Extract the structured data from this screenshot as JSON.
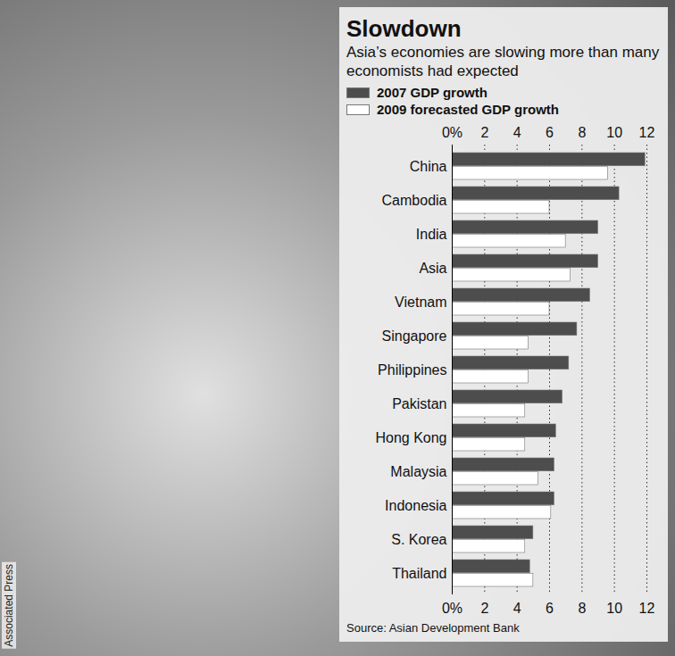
{
  "chart_data": {
    "type": "bar",
    "orientation": "horizontal",
    "title": "Slowdown",
    "subtitle": "Asia’s economies are slowing more than many economists had expected",
    "source": "Source: Asian Development Bank",
    "credit": "Associated Press",
    "categories": [
      "China",
      "Cambodia",
      "India",
      "Asia",
      "Vietnam",
      "Singapore",
      "Philippines",
      "Pakistan",
      "Hong Kong",
      "Malaysia",
      "Indonesia",
      "S. Korea",
      "Thailand"
    ],
    "series": [
      {
        "name": "2007 GDP growth",
        "color": "#4d4d4d",
        "values": [
          11.9,
          10.3,
          9.0,
          9.0,
          8.5,
          7.7,
          7.2,
          6.8,
          6.4,
          6.3,
          6.3,
          5.0,
          4.8
        ]
      },
      {
        "name": "2009 forecasted GDP growth",
        "color": "#ffffff",
        "values": [
          9.6,
          6.0,
          7.0,
          7.3,
          6.0,
          4.7,
          4.7,
          4.5,
          4.5,
          5.3,
          6.1,
          4.5,
          5.0
        ]
      }
    ],
    "xlim": [
      0,
      12
    ],
    "xticks": [
      {
        "value": 0,
        "label": "0%"
      },
      2,
      4,
      6,
      8,
      10,
      12
    ],
    "grid": true,
    "legend": "top"
  }
}
